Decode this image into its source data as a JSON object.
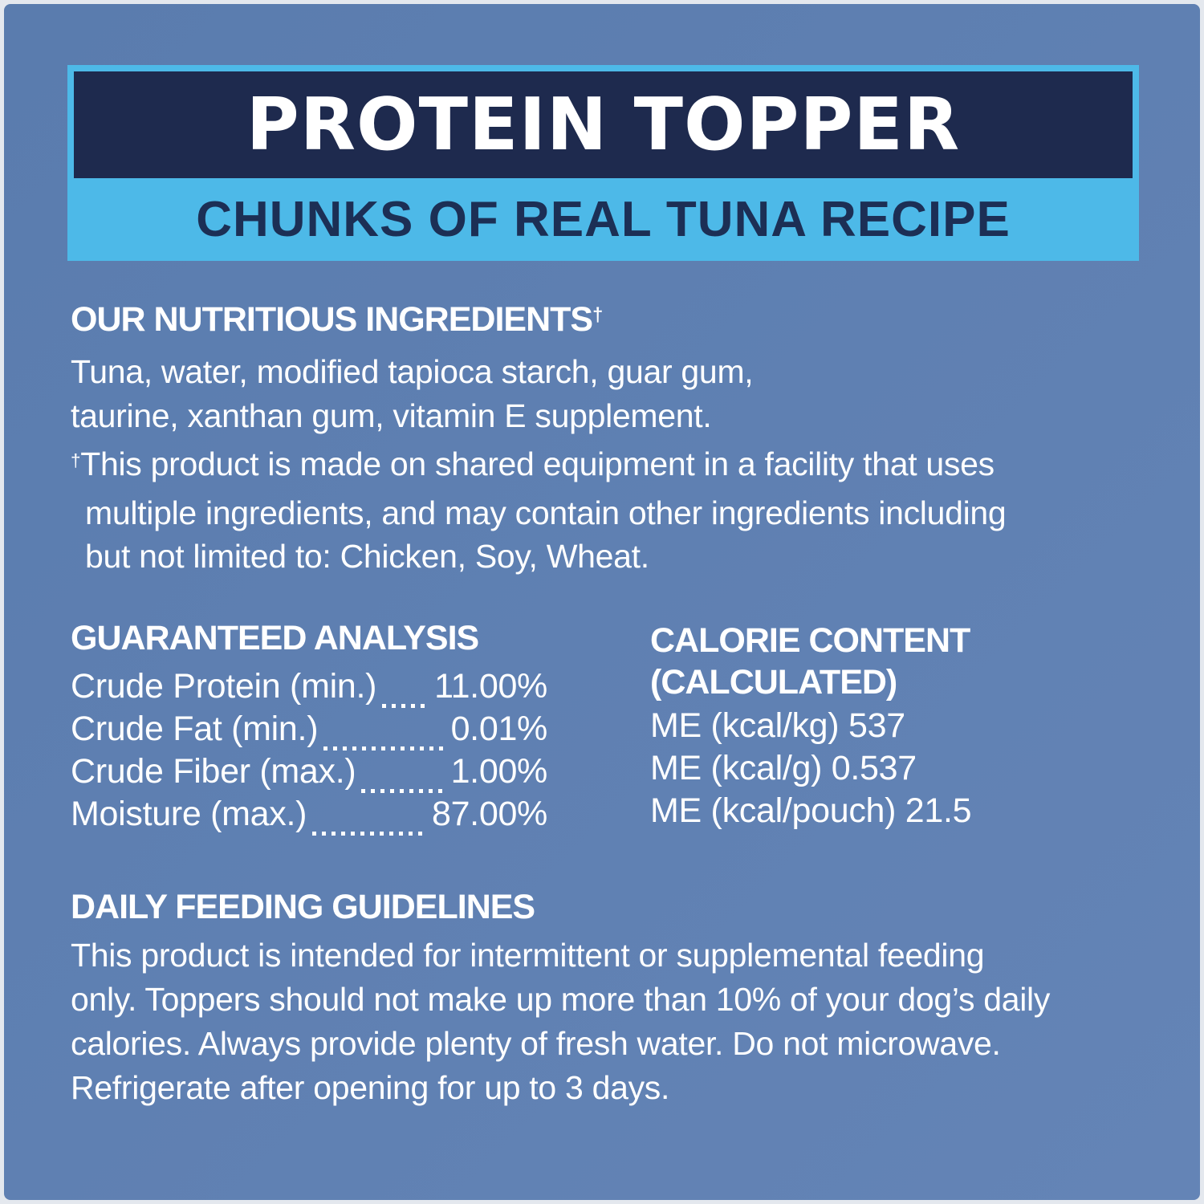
{
  "colors": {
    "page_edge": "#E4E8EE",
    "background_blue_start": "#5A7CAE",
    "background_blue_end": "#6484B6",
    "band_cyan": "#4DB9E8",
    "banner_navy": "#1E2A4E",
    "subtitle_navy": "#1C2F55",
    "text_white": "#FFFFFF"
  },
  "header": {
    "title": "PROTEIN TOPPER",
    "subtitle": "CHUNKS OF REAL TUNA RECIPE"
  },
  "ingredients": {
    "heading": "OUR NUTRITIOUS INGREDIENTS",
    "dagger": "†",
    "lines": [
      "Tuna, water, modified tapioca starch, guar gum,",
      "taurine, xanthan gum, vitamin E supplement."
    ],
    "footnote": {
      "dagger": "†",
      "lines": [
        "This product is made on shared equipment in a facility that uses",
        "multiple ingredients, and may contain other ingredients including",
        "but not limited to: Chicken, Soy, Wheat."
      ]
    }
  },
  "guaranteed_analysis": {
    "heading": "GUARANTEED ANALYSIS",
    "rows": [
      {
        "label": "Crude Protein (min.)",
        "value": "11.00%"
      },
      {
        "label": "Crude Fat (min.)",
        "value": "0.01%"
      },
      {
        "label": "Crude Fiber (max.)",
        "value": "1.00%"
      },
      {
        "label": "Moisture (max.)",
        "value": "87.00%"
      }
    ]
  },
  "calorie_content": {
    "heading_line1": "CALORIE CONTENT",
    "heading_line2": "(CALCULATED)",
    "rows": [
      "ME (kcal/kg) 537",
      "ME (kcal/g) 0.537",
      "ME (kcal/pouch) 21.5"
    ]
  },
  "feeding_guidelines": {
    "heading": "DAILY FEEDING GUIDELINES",
    "lines": [
      "This product is intended for intermittent or supplemental feeding",
      "only. Toppers should not make up more than 10% of your dog’s daily",
      "calories. Always provide plenty of fresh water. Do not microwave.",
      "Refrigerate after opening for up to 3 days."
    ]
  }
}
